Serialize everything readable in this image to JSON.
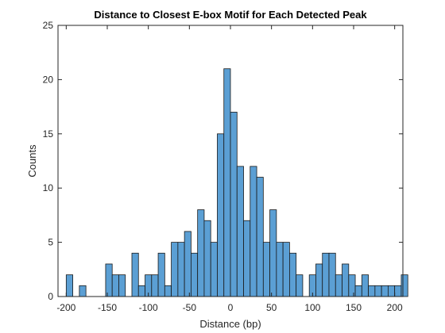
{
  "chart_data": {
    "type": "bar",
    "title": "Distance to Closest E-box Motif for Each Detected Peak",
    "xlabel": "Distance (bp)",
    "ylabel": "Counts",
    "xlim": [
      -210,
      210
    ],
    "ylim": [
      0,
      25
    ],
    "xticks": [
      -200,
      -150,
      -100,
      -50,
      0,
      50,
      100,
      150,
      200
    ],
    "yticks": [
      0,
      5,
      10,
      15,
      20,
      25
    ],
    "bin_width": 8,
    "bin_start": -200,
    "values": [
      2,
      0,
      1,
      0,
      0,
      0,
      3,
      2,
      2,
      0,
      4,
      1,
      2,
      2,
      4,
      1,
      5,
      5,
      6,
      4,
      8,
      7,
      5,
      15,
      21,
      17,
      12,
      7,
      12,
      11,
      5,
      8,
      5,
      5,
      4,
      2,
      0,
      2,
      3,
      4,
      4,
      2,
      3,
      2,
      1,
      2,
      1,
      1,
      1,
      1,
      1,
      2
    ],
    "bar_color": "#5b9fd4",
    "edge_color": "#1a1a1a",
    "grid": false,
    "box": true
  }
}
